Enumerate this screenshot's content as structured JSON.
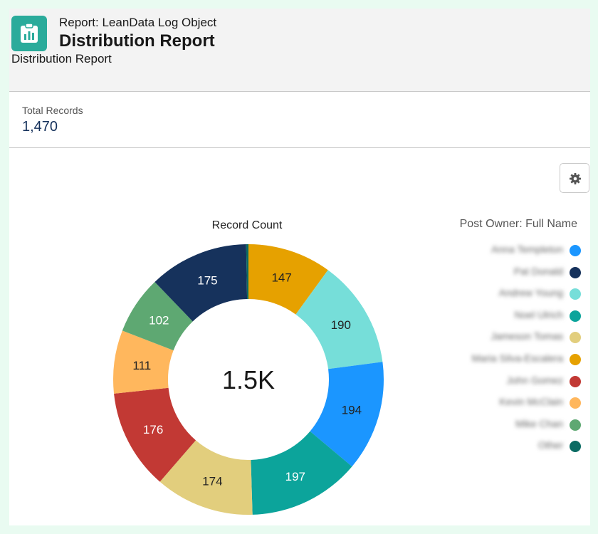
{
  "header": {
    "breadcrumb": "Report: LeanData Log Object",
    "title": "Distribution Report",
    "subtitle": "Distribution Report",
    "icon": "report-icon"
  },
  "summary": {
    "label": "Total Records",
    "value": "1,470"
  },
  "toolbar": {
    "settings_icon": "gear-icon"
  },
  "chart_data": {
    "type": "pie",
    "donut": true,
    "title": "Record Count",
    "center_label": "1.5K",
    "legend_title": "Post Owner: Full Name",
    "legend_placement": "right",
    "slices": [
      {
        "label": "Anna Templeton",
        "value": 194,
        "color": "#1b96ff"
      },
      {
        "label": "Pat Donald",
        "value": 175,
        "color": "#16325c"
      },
      {
        "label": "Andrew Young",
        "value": 190,
        "color": "#76ded9"
      },
      {
        "label": "Noel Ulrich",
        "value": 197,
        "color": "#0ca49b"
      },
      {
        "label": "Jameson Tomas",
        "value": 174,
        "color": "#e2ce7d"
      },
      {
        "label": "Maria Silva-Escalera",
        "value": 147,
        "color": "#e6a100"
      },
      {
        "label": "John Gomez",
        "value": 176,
        "color": "#c23934"
      },
      {
        "label": "Kevin McClain",
        "value": 111,
        "color": "#ffb75d"
      },
      {
        "label": "Mike Chan",
        "value": 102,
        "color": "#5ea872"
      },
      {
        "label": "Other",
        "value": 4,
        "color": "#0b6b63"
      }
    ],
    "drawing_order": [
      5,
      2,
      0,
      3,
      4,
      6,
      7,
      8,
      1,
      9
    ]
  }
}
